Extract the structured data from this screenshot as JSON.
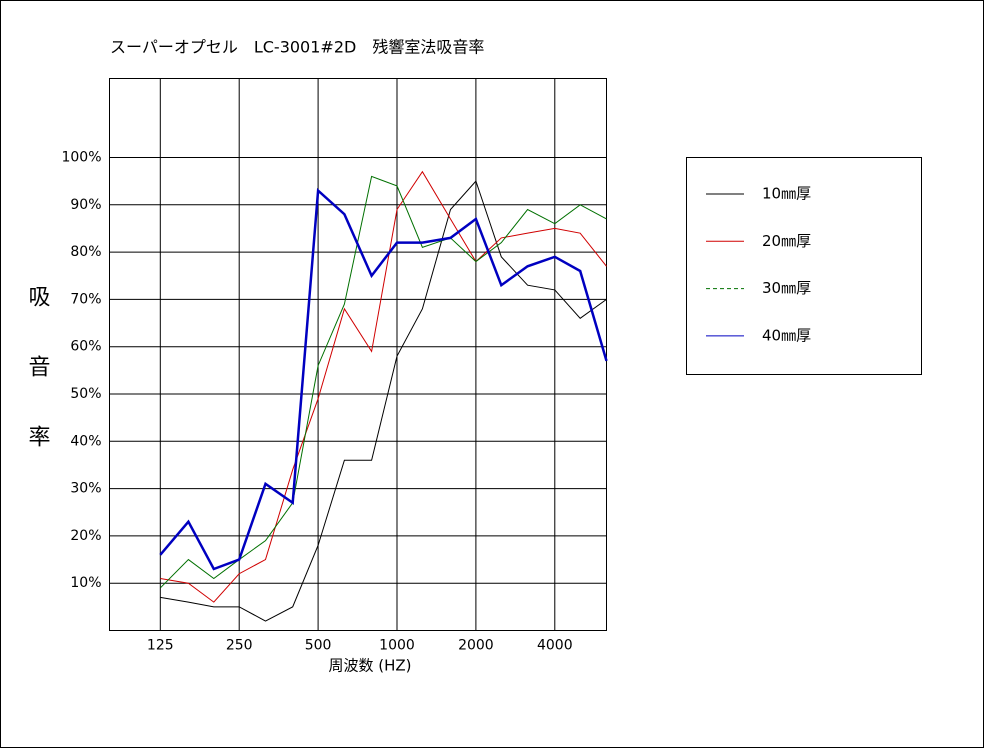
{
  "chart_data": {
    "type": "line",
    "title": "スーパーオプセル　LC-3001#2D　残響室法吸音率",
    "x_label": "周波数 (HZ)",
    "y_label": "吸音率",
    "x": [
      125,
      160,
      200,
      250,
      315,
      400,
      500,
      630,
      800,
      1000,
      1250,
      1600,
      2000,
      2500,
      3150,
      4000,
      5000,
      6300
    ],
    "xlim": [
      80,
      6300
    ],
    "xscale": "log",
    "xticks": [
      125,
      250,
      500,
      1000,
      2000,
      4000
    ],
    "ylim": [
      0,
      116.7
    ],
    "yticks": [
      {
        "value": 10,
        "label": "10%"
      },
      {
        "value": 20,
        "label": "20%"
      },
      {
        "value": 30,
        "label": "30%"
      },
      {
        "value": 40,
        "label": "40%"
      },
      {
        "value": 50,
        "label": "50%"
      },
      {
        "value": 60,
        "label": "60%"
      },
      {
        "value": 70,
        "label": "70%"
      },
      {
        "value": 80,
        "label": "80%"
      },
      {
        "value": 90,
        "label": "90%"
      },
      {
        "value": 100,
        "label": "100%"
      }
    ],
    "grid": true,
    "legend": "right",
    "series": [
      {
        "name": "10㎜厚",
        "color": "#000000",
        "width": 1,
        "values": [
          7,
          6,
          5,
          5,
          2,
          5,
          18,
          36,
          36,
          58,
          68,
          89,
          95,
          79,
          73,
          72,
          66,
          70
        ]
      },
      {
        "name": "20㎜厚",
        "color": "#d00000",
        "width": 1,
        "values": [
          11,
          10,
          6,
          12,
          15,
          34,
          49,
          68,
          59,
          89,
          97,
          87,
          78,
          83,
          84,
          85,
          84,
          77
        ]
      },
      {
        "name": "30㎜厚",
        "color": "#007000",
        "width": 1,
        "dash": true,
        "values": [
          9,
          15,
          11,
          15,
          19,
          27,
          56,
          69,
          96,
          94,
          81,
          83,
          78,
          82,
          89,
          86,
          90,
          87
        ]
      },
      {
        "name": "40㎜厚",
        "color": "#0000c0",
        "width": 2.5,
        "values": [
          16,
          23,
          13,
          15,
          31,
          27,
          93,
          88,
          75,
          82,
          82,
          83,
          87,
          73,
          77,
          79,
          76,
          57
        ]
      }
    ]
  }
}
